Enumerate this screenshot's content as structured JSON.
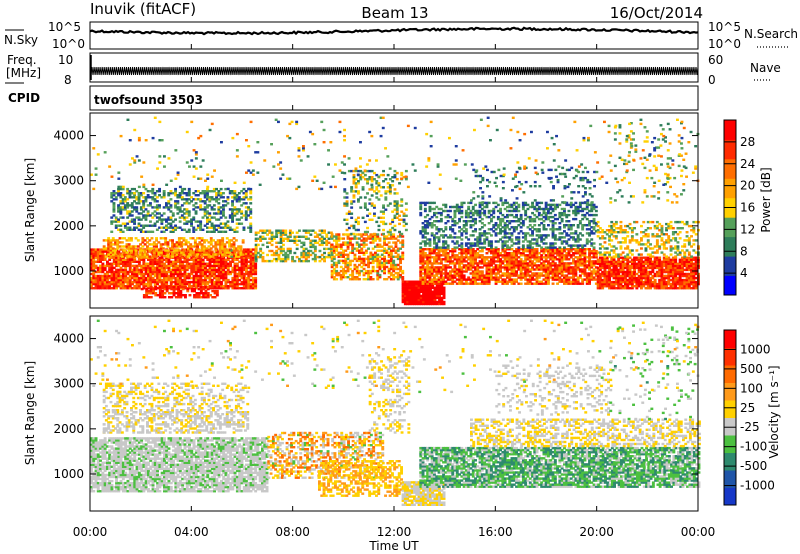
{
  "header": {
    "radar": "Inuvik (fitACF)",
    "beam": "Beam 13",
    "date": "16/Oct/2014"
  },
  "panels": {
    "nsky_label": "N.Sky",
    "nsearch_label": "N.Search",
    "noise_ticks": [
      "10^5",
      "10^0"
    ],
    "freq_label_line1": "Freq.",
    "freq_label_line2": "[MHz]",
    "freq_ticks": [
      "10",
      "8"
    ],
    "nave_label": "Nave",
    "nave_ticks": [
      "60",
      "0"
    ],
    "cpid_label": "CPID",
    "cpid_value": "twofsound 3503"
  },
  "colors": {
    "power_scale": [
      "#0000ff",
      "#1e3ca0",
      "#2e7d5a",
      "#55a05a",
      "#ffd000",
      "#ffa000",
      "#ff6e00",
      "#ff2a00",
      "#ff0000"
    ],
    "velocity_scale": [
      "#1638c8",
      "#1f55a8",
      "#2e8a6e",
      "#4cc040",
      "#c8c8c8",
      "#ffd000",
      "#ff9a1a",
      "#ff6a00",
      "#ff3000",
      "#ff0000"
    ]
  },
  "chart_data": [
    {
      "type": "heatmap",
      "panel": "power",
      "title": "",
      "ylabel": "Slant Range [km]",
      "ylim": [
        180,
        4500
      ],
      "yticks": [
        1000,
        2000,
        3000,
        4000
      ],
      "colorbar_label": "Power [dB]",
      "colorbar_ticks": [
        "28",
        "24",
        "20",
        "16",
        "12",
        "8",
        "4"
      ],
      "colorbar_range": [
        0,
        32
      ],
      "scatter_bands": [
        {
          "t0": 0.0,
          "t1": 6.5,
          "r0": 600,
          "r1": 1500,
          "v0": 20,
          "v1": 32,
          "d": 0.85
        },
        {
          "t0": 0.5,
          "t1": 6.0,
          "r0": 1300,
          "r1": 1750,
          "v0": 14,
          "v1": 26,
          "d": 0.55
        },
        {
          "t0": 0.8,
          "t1": 6.3,
          "r0": 1850,
          "r1": 2800,
          "v0": 4,
          "v1": 16,
          "d": 0.45
        },
        {
          "t0": 2.0,
          "t1": 5.0,
          "r0": 400,
          "r1": 650,
          "v0": 24,
          "v1": 32,
          "d": 0.6
        },
        {
          "t0": 6.5,
          "t1": 9.5,
          "r0": 1200,
          "r1": 1900,
          "v0": 8,
          "v1": 22,
          "d": 0.45
        },
        {
          "t0": 9.5,
          "t1": 12.3,
          "r0": 800,
          "r1": 1800,
          "v0": 12,
          "v1": 28,
          "d": 0.6
        },
        {
          "t0": 10.0,
          "t1": 12.5,
          "r0": 1800,
          "r1": 3200,
          "v0": 6,
          "v1": 20,
          "d": 0.25
        },
        {
          "t0": 12.3,
          "t1": 14.0,
          "r0": 250,
          "r1": 750,
          "v0": 28,
          "v1": 32,
          "d": 0.95
        },
        {
          "t0": 13.0,
          "t1": 20.0,
          "r0": 700,
          "r1": 1500,
          "v0": 18,
          "v1": 32,
          "d": 0.8
        },
        {
          "t0": 13.0,
          "t1": 20.0,
          "r0": 1500,
          "r1": 2500,
          "v0": 4,
          "v1": 14,
          "d": 0.45
        },
        {
          "t0": 15.0,
          "t1": 20.0,
          "r0": 2500,
          "r1": 3300,
          "v0": 4,
          "v1": 12,
          "d": 0.12
        },
        {
          "t0": 20.0,
          "t1": 24.0,
          "r0": 600,
          "r1": 1300,
          "v0": 22,
          "v1": 32,
          "d": 0.85
        },
        {
          "t0": 20.0,
          "t1": 24.0,
          "r0": 1300,
          "r1": 2100,
          "v0": 10,
          "v1": 22,
          "d": 0.4
        },
        {
          "t0": 20.5,
          "t1": 23.5,
          "r0": 2500,
          "r1": 4300,
          "v0": 8,
          "v1": 20,
          "d": 0.06
        },
        {
          "t0": 0.0,
          "t1": 24.0,
          "r0": 2800,
          "r1": 4400,
          "v0": 4,
          "v1": 24,
          "d": 0.03
        }
      ]
    },
    {
      "type": "heatmap",
      "panel": "velocity",
      "title": "",
      "xlabel": "Time UT",
      "ylabel": "Slant Range [km]",
      "xlim": [
        0,
        24
      ],
      "xticks": [
        "00:00",
        "04:00",
        "08:00",
        "12:00",
        "16:00",
        "20:00",
        "00:00"
      ],
      "ylim": [
        180,
        4500
      ],
      "yticks": [
        1000,
        2000,
        3000,
        4000
      ],
      "colorbar_label": "Velocity [m s⁻¹]",
      "colorbar_ticks": [
        "1000",
        "500",
        "100",
        "25",
        "-25",
        "-100",
        "-500",
        "-1000"
      ],
      "colorbar_range": [
        -1200,
        1200
      ],
      "scatter_bands": [
        {
          "t0": 0.0,
          "t1": 7.0,
          "r0": 600,
          "r1": 1800,
          "v0": -300,
          "v1": -60,
          "d": 0.8
        },
        {
          "t0": 0.5,
          "t1": 6.2,
          "r0": 1900,
          "r1": 3000,
          "v0": -40,
          "v1": 40,
          "d": 0.35
        },
        {
          "t0": 0.5,
          "t1": 6.2,
          "r0": 1900,
          "r1": 2400,
          "v0": -160,
          "v1": -60,
          "d": 0.2
        },
        {
          "t0": 7.0,
          "t1": 11.5,
          "r0": 900,
          "r1": 1900,
          "v0": -300,
          "v1": 700,
          "d": 0.45
        },
        {
          "t0": 9.0,
          "t1": 12.3,
          "r0": 500,
          "r1": 1300,
          "v0": 30,
          "v1": 400,
          "d": 0.5
        },
        {
          "t0": 12.3,
          "t1": 14.0,
          "r0": 300,
          "r1": 800,
          "v0": -20,
          "v1": 20,
          "d": 0.9
        },
        {
          "t0": 13.0,
          "t1": 24.0,
          "r0": 700,
          "r1": 1600,
          "v0": -700,
          "v1": -80,
          "d": 0.8
        },
        {
          "t0": 15.0,
          "t1": 24.0,
          "r0": 1600,
          "r1": 2200,
          "v0": -50,
          "v1": 50,
          "d": 0.45
        },
        {
          "t0": 16.0,
          "t1": 20.5,
          "r0": 2300,
          "r1": 3400,
          "v0": -200,
          "v1": 40,
          "d": 0.18
        },
        {
          "t0": 11.0,
          "t1": 12.6,
          "r0": 1900,
          "r1": 3600,
          "v0": -40,
          "v1": 40,
          "d": 0.25
        },
        {
          "t0": 20.5,
          "t1": 24.0,
          "r0": 2200,
          "r1": 4300,
          "v0": -500,
          "v1": -80,
          "d": 0.06
        },
        {
          "t0": 0.0,
          "t1": 24.0,
          "r0": 2800,
          "r1": 4400,
          "v0": -300,
          "v1": 300,
          "d": 0.03
        }
      ]
    }
  ]
}
